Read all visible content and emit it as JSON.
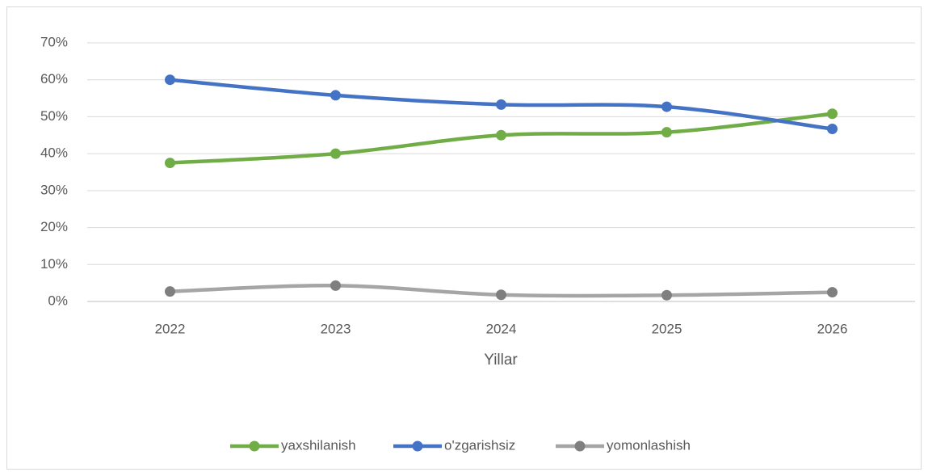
{
  "chart_data": {
    "type": "line",
    "x_label": "Yillar",
    "categories": [
      "2022",
      "2023",
      "2024",
      "2025",
      "2026"
    ],
    "series": [
      {
        "name": "yaxshilanish",
        "color": "#70ad47",
        "values": [
          37.5,
          40,
          45,
          45.8,
          50.8
        ]
      },
      {
        "name": "o'zgarishsiz",
        "color": "#4472c4",
        "values": [
          60,
          55.8,
          53.3,
          52.7,
          46.7
        ]
      },
      {
        "name": "yomonlashish",
        "color": "#a5a5a5",
        "marker_color": "#7f7f7f",
        "values": [
          2.7,
          4.3,
          1.8,
          1.7,
          2.5
        ]
      }
    ],
    "ylim": [
      0,
      70
    ],
    "yticks": [
      {
        "value": 0,
        "label": "0%"
      },
      {
        "value": 10,
        "label": "10%"
      },
      {
        "value": 20,
        "label": "20%"
      },
      {
        "value": 30,
        "label": "30%"
      },
      {
        "value": 40,
        "label": "40%"
      },
      {
        "value": 50,
        "label": "50%"
      },
      {
        "value": 60,
        "label": "60%"
      },
      {
        "value": 70,
        "label": "70%"
      }
    ],
    "grid": true,
    "smooth": true,
    "legend": "bottom"
  }
}
